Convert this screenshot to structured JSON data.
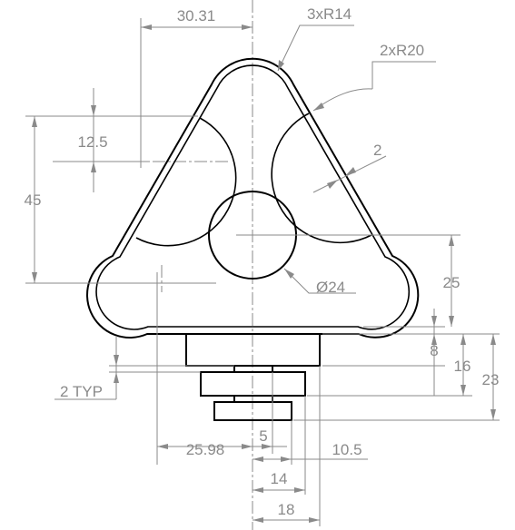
{
  "dimensions": {
    "d_30_31": "30.31",
    "d_3xR14": "3xR14",
    "d_2xR20": "2xR20",
    "d_12_5": "12.5",
    "d_2": "2",
    "d_45": "45",
    "d_25": "25",
    "d_dia24": "Ø24",
    "d_8": "8",
    "d_16": "16",
    "d_23": "23",
    "d_2typ": "2 TYP",
    "d_25_98": "25.98",
    "d_5": "5",
    "d_10_5": "10.5",
    "d_14": "14",
    "d_18": "18"
  }
}
